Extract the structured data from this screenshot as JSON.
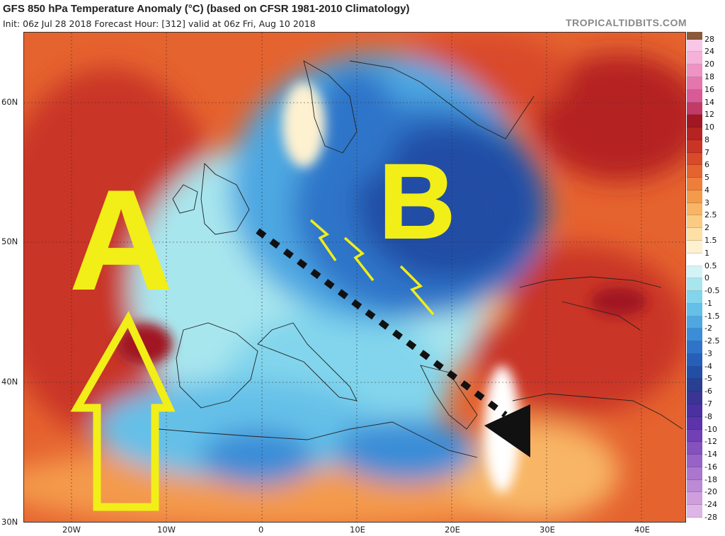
{
  "header": {
    "title": "GFS 850 hPa Temperature Anomaly (°C) (based on CFSR 1981-2010 Climatology)",
    "subtitle": "Init: 06z Jul 28 2018   Forecast Hour: [312]   valid at 06z Fri, Aug 10 2018",
    "credit": "TROPICALTIDBITS.COM"
  },
  "axes": {
    "lat_labels": [
      "60N",
      "50N",
      "40N",
      "30N"
    ],
    "lon_labels": [
      "20W",
      "10W",
      "0",
      "10E",
      "20E",
      "30E",
      "40E"
    ]
  },
  "annotations": {
    "high_label": "A",
    "low_label": "B"
  },
  "colorbar": {
    "labels": [
      "28",
      "24",
      "20",
      "18",
      "16",
      "14",
      "12",
      "10",
      "8",
      "7",
      "6",
      "5",
      "4",
      "3",
      "2.5",
      "2",
      "1.5",
      "1",
      "0.5",
      "0",
      "-0.5",
      "-1",
      "-1.5",
      "-2",
      "-2.5",
      "-3",
      "-4",
      "-5",
      "-6",
      "-7",
      "-8",
      "-10",
      "-12",
      "-14",
      "-16",
      "-18",
      "-20",
      "-24",
      "-28"
    ],
    "colors": [
      "#f9c7e6",
      "#f5b1d8",
      "#ee93c4",
      "#e476ae",
      "#d85a97",
      "#c23b66",
      "#a11822",
      "#b52422",
      "#c93425",
      "#d94a2a",
      "#e5632f",
      "#ee7e3a",
      "#f49a4b",
      "#f8b565",
      "#fbcb83",
      "#fde0a6",
      "#fef1d0",
      "#ffffff",
      "#d3f3f6",
      "#a8e6ee",
      "#82d5ec",
      "#65c0e8",
      "#4ea7e1",
      "#3b8dd7",
      "#2f74c9",
      "#275fb8",
      "#234ea5",
      "#2a3f92",
      "#3a3595",
      "#4b31a0",
      "#5c33ab",
      "#7040b4",
      "#8451bd",
      "#9863c6",
      "#ab76ce",
      "#bd8ad6",
      "#cf9fdd",
      "#deb6e5"
    ]
  }
}
